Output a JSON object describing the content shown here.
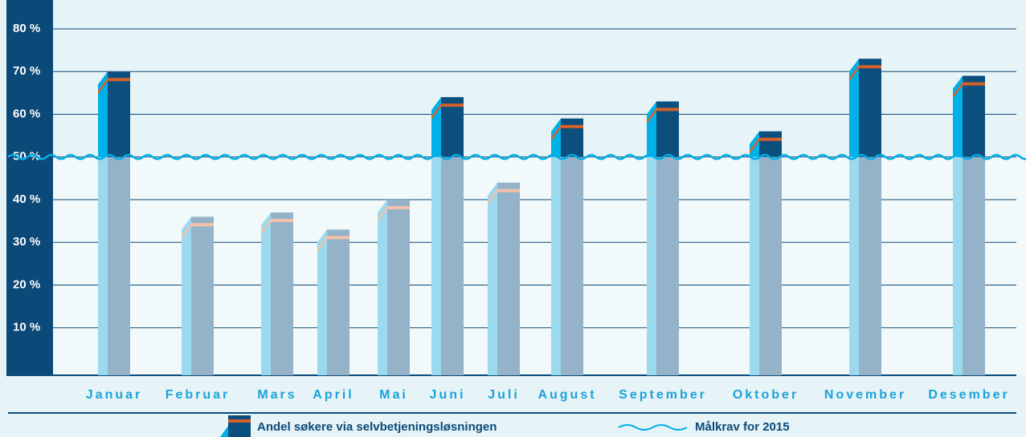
{
  "chart_data": {
    "type": "bar",
    "categories": [
      "Januar",
      "Februar",
      "Mars",
      "April",
      "Mai",
      "Juni",
      "Juli",
      "August",
      "September",
      "Oktober",
      "November",
      "Desember"
    ],
    "series": [
      {
        "name": "Andel søkere via selvbetjeningsløsningen",
        "color": "#0a4f7e",
        "values": [
          70,
          36,
          37,
          33,
          40,
          64,
          44,
          59,
          63,
          56,
          73,
          69
        ]
      }
    ],
    "target": {
      "name": "Målkrav for 2015",
      "value": 50,
      "color": "#00aee8"
    },
    "ylim": [
      0,
      80
    ],
    "yticks": [
      {
        "value": 10,
        "label": "10 %"
      },
      {
        "value": 20,
        "label": "20 %"
      },
      {
        "value": 30,
        "label": "30 %"
      },
      {
        "value": 40,
        "label": "40 %"
      },
      {
        "value": 50,
        "label": "50 %"
      },
      {
        "value": 60,
        "label": "60 %"
      },
      {
        "value": 70,
        "label": "70 %"
      },
      {
        "value": 80,
        "label": "80 %"
      }
    ],
    "grid": true
  }
}
